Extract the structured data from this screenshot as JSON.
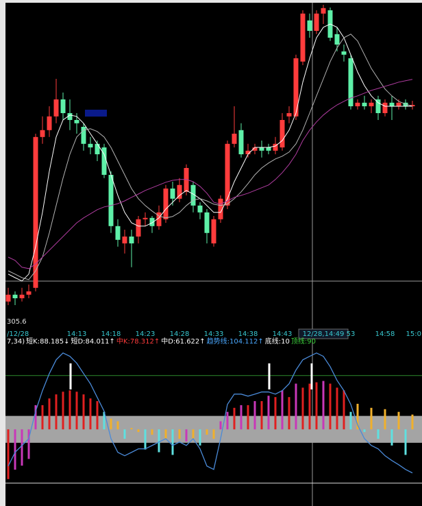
{
  "chart_data": [
    {
      "type": "candlestick",
      "categories": [
        "/12/28",
        null,
        null,
        null,
        null,
        null,
        null,
        null,
        null,
        null,
        "14:13",
        null,
        null,
        null,
        null,
        "14:18",
        null,
        null,
        null,
        null,
        "14:23",
        null,
        null,
        null,
        null,
        "14:28",
        null,
        null,
        null,
        null,
        "14:33",
        null,
        null,
        null,
        null,
        "14:38",
        null,
        null,
        null,
        null,
        "14:43",
        null,
        null,
        null,
        null,
        null,
        "12/28,14:49",
        null,
        null,
        null,
        "53",
        null,
        null,
        null,
        null,
        "14:58",
        null,
        null,
        null,
        "15:0"
      ],
      "open": [
        306.38,
        306.63,
        306.5,
        306.63,
        306.88,
        312.38,
        312.63,
        313.13,
        313.75,
        313.25,
        313.0,
        312.75,
        312.13,
        312.13,
        312.0,
        311.0,
        309.13,
        308.5,
        308.75,
        308.75,
        309.38,
        309.43,
        309.13,
        309.38,
        310.5,
        310.13,
        310.38,
        310.63,
        309.88,
        309.63,
        308.5,
        309.38,
        309.88,
        312.13,
        312.63,
        311.75,
        311.88,
        312.0,
        312.0,
        311.88,
        312.0,
        313.13,
        313.13,
        315.13,
        316.63,
        316.25,
        316.88,
        317.0,
        316.13,
        315.5,
        315.25,
        313.5,
        313.63,
        313.5,
        313.75,
        313.25,
        313.63,
        313.5,
        313.63,
        313.5
      ],
      "close": [
        306.63,
        306.5,
        306.63,
        306.75,
        312.38,
        312.63,
        313.13,
        313.75,
        313.25,
        313.0,
        312.88,
        312.13,
        312.0,
        311.75,
        311.0,
        309.13,
        308.63,
        308.75,
        308.5,
        309.38,
        309.43,
        309.13,
        309.63,
        310.5,
        310.13,
        310.63,
        311.25,
        309.88,
        309.63,
        308.88,
        309.38,
        310.13,
        312.13,
        312.5,
        311.75,
        311.88,
        312.0,
        311.88,
        311.88,
        312.13,
        313.0,
        313.25,
        315.25,
        316.88,
        316.25,
        316.88,
        317.08,
        316.0,
        315.75,
        315.38,
        313.5,
        313.63,
        313.5,
        313.63,
        313.25,
        313.63,
        313.5,
        313.63,
        313.5,
        313.55
      ],
      "high": [
        306.88,
        306.75,
        306.88,
        307.0,
        312.5,
        313.13,
        313.5,
        314.5,
        314.0,
        313.75,
        313.25,
        312.88,
        312.38,
        312.25,
        312.13,
        311.13,
        309.38,
        309.0,
        309.0,
        309.5,
        309.63,
        309.5,
        309.88,
        310.63,
        310.75,
        310.88,
        311.38,
        310.75,
        310.0,
        309.75,
        309.5,
        310.25,
        312.25,
        313.5,
        312.88,
        312.13,
        312.13,
        312.25,
        312.13,
        312.38,
        313.25,
        313.5,
        315.38,
        317.0,
        316.88,
        317.0,
        317.2,
        317.1,
        316.38,
        315.75,
        315.38,
        313.75,
        313.88,
        313.75,
        313.88,
        313.75,
        313.88,
        313.75,
        313.75,
        313.7
      ],
      "low": [
        306.25,
        306.25,
        306.38,
        306.5,
        306.75,
        312.13,
        312.38,
        312.88,
        313.0,
        312.63,
        312.5,
        311.88,
        311.75,
        311.5,
        310.88,
        308.88,
        308.38,
        308.13,
        307.63,
        308.5,
        309.13,
        308.88,
        309.0,
        309.25,
        309.88,
        310.0,
        310.25,
        309.63,
        309.38,
        308.5,
        308.38,
        309.25,
        309.75,
        312.0,
        311.63,
        311.63,
        311.75,
        311.63,
        311.75,
        311.75,
        311.88,
        312.88,
        313.0,
        315.0,
        316.0,
        316.13,
        316.5,
        315.88,
        315.5,
        315.13,
        313.38,
        313.38,
        313.38,
        313.25,
        313.0,
        313.13,
        313.0,
        313.38,
        313.38,
        313.38
      ],
      "up_color": "#ff3c3c",
      "down_color": "#5ef0a8",
      "lines": [
        {
          "color": "#ffffff",
          "values": [
            307.38,
            307.25,
            307.13,
            307.38,
            308.38,
            309.63,
            311.13,
            312.38,
            313.0,
            313.18,
            313.13,
            312.88,
            312.5,
            312.13,
            311.75,
            311.0,
            310.25,
            309.63,
            309.25,
            309.13,
            309.13,
            309.25,
            309.43,
            309.75,
            310.0,
            310.25,
            310.43,
            310.3,
            310.13,
            309.88,
            309.63,
            309.63,
            310.13,
            310.75,
            311.25,
            311.75,
            312.0,
            312.0,
            312.0,
            312.05,
            312.25,
            312.63,
            313.25,
            314.38,
            315.25,
            316.0,
            316.38,
            316.5,
            316.38,
            316.0,
            315.38,
            314.75,
            314.25,
            313.88,
            313.63,
            313.5,
            313.5,
            313.5,
            313.5,
            313.5
          ]
        },
        {
          "color": "#b4b4b4",
          "values": [
            307.5,
            307.38,
            307.25,
            307.18,
            307.5,
            308.0,
            308.88,
            309.88,
            310.88,
            311.75,
            312.38,
            312.63,
            312.68,
            312.58,
            312.38,
            312.0,
            311.5,
            311.0,
            310.5,
            310.13,
            309.88,
            309.68,
            309.5,
            309.43,
            309.48,
            309.63,
            309.88,
            310.08,
            310.13,
            310.05,
            309.93,
            309.88,
            309.93,
            310.13,
            310.38,
            310.68,
            311.0,
            311.25,
            311.43,
            311.58,
            311.68,
            311.83,
            312.13,
            312.63,
            313.25,
            313.88,
            314.5,
            315.13,
            315.63,
            316.0,
            316.13,
            315.88,
            315.38,
            314.88,
            314.5,
            314.13,
            313.88,
            313.68,
            313.58,
            313.5
          ]
        },
        {
          "color": "#b03ca0",
          "values": [
            308.0,
            307.88,
            307.63,
            307.58,
            307.75,
            308.0,
            308.25,
            308.5,
            308.75,
            309.0,
            309.25,
            309.43,
            309.58,
            309.73,
            309.83,
            309.88,
            309.95,
            310.05,
            310.18,
            310.3,
            310.43,
            310.53,
            310.63,
            310.73,
            310.8,
            310.83,
            310.83,
            310.75,
            310.58,
            310.33,
            310.0,
            309.93,
            310.05,
            310.18,
            310.25,
            310.33,
            310.43,
            310.53,
            310.63,
            310.83,
            311.08,
            311.38,
            311.75,
            312.25,
            312.63,
            312.93,
            313.18,
            313.38,
            313.55,
            313.68,
            313.8,
            313.88,
            313.98,
            314.08,
            314.15,
            314.23,
            314.3,
            314.38,
            314.43,
            314.48
          ]
        }
      ],
      "ylim": [
        305.6,
        317.25
      ],
      "yticks": [
        305.6
      ]
    },
    {
      "type": "indicator",
      "header": [
        {
          "text": "7,34)",
          "color": "#ffffff"
        },
        {
          "text": "短K:88.185↓",
          "color": "#ffffff"
        },
        {
          "text": "短D:84.011↑",
          "color": "#ffffff"
        },
        {
          "text": "中K:78.312↑",
          "color": "#ff3c3c"
        },
        {
          "text": "中D:61.622↑",
          "color": "#ffffff"
        },
        {
          "text": "趋势线:104.112↑",
          "color": "#4aa8ff"
        },
        {
          "text": "底线:10",
          "color": "#ffffff"
        },
        {
          "text": "顶线:90",
          "color": "#3cd23c"
        }
      ],
      "bars": {
        "values": [
          13,
          20,
          23,
          28,
          68,
          68,
          73,
          76,
          78,
          79,
          78,
          76,
          73,
          71,
          63,
          58,
          56,
          43,
          51,
          48,
          35,
          46,
          33,
          43,
          31,
          43,
          41,
          43,
          38,
          46,
          43,
          56,
          63,
          66,
          68,
          68,
          71,
          71,
          75,
          74,
          79,
          74,
          84,
          81,
          84,
          85,
          86,
          84,
          81,
          79,
          63,
          69,
          48,
          66,
          43,
          65,
          38,
          63,
          31,
          61
        ],
        "colors": [
          "#e02020",
          "#c838b8",
          "#c838b8",
          "#c838b8",
          "#c838b8",
          "#e02020",
          "#e02020",
          "#e02020",
          "#e02020",
          "#e02020",
          "#e02020",
          "#e02020",
          "#e02020",
          "#e02020",
          "#5ee0e0",
          "#f0b02c",
          "#f0b02c",
          "#5ee0e0",
          "#f0b02c",
          "#f0b02c",
          "#5ee0e0",
          "#f0b02c",
          "#5ee0e0",
          "#f0b02c",
          "#5ee0e0",
          "#f0b02c",
          "#c838b8",
          "#f0b02c",
          "#5ee0e0",
          "#f0b02c",
          "#f0b02c",
          "#c838b8",
          "#c838b8",
          "#e02020",
          "#c838b8",
          "#e02020",
          "#c838b8",
          "#e02020",
          "#c838b8",
          "#e02020",
          "#c838b8",
          "#e02020",
          "#c838b8",
          "#e02020",
          "#e02020",
          "#e02020",
          "#c838b8",
          "#e02020",
          "#e02020",
          "#e02020",
          "#5ee0e0",
          "#f0b02c",
          "#5ee0e0",
          "#f0b02c",
          "#5ee0e0",
          "#f0b02c",
          "#5ee0e0",
          "#f0b02c",
          "#5ee0e0",
          "#f0b02c"
        ]
      },
      "lines": [
        {
          "color": "#4a8ad8",
          "values": [
            22.7,
            32.9,
            38.0,
            43.1,
            63.5,
            78.8,
            91.5,
            101.7,
            106.8,
            104.3,
            99.2,
            91.5,
            83.9,
            73.7,
            63.5,
            43.1,
            32.9,
            30.4,
            32.9,
            35.5,
            35.5,
            38.0,
            40.6,
            43.1,
            38.0,
            40.6,
            38.0,
            43.1,
            35.5,
            22.7,
            20.2,
            43.1,
            68.6,
            76.2,
            76.2,
            74.7,
            76.2,
            77.8,
            77.8,
            76.2,
            78.8,
            83.9,
            94.1,
            101.7,
            104.3,
            106.8,
            104.3,
            96.6,
            86.4,
            78.8,
            68.6,
            53.3,
            43.1,
            38.0,
            35.5,
            30.4,
            26.8,
            23.7,
            20.2,
            17.6
          ]
        }
      ],
      "band": [
        40,
        60
      ],
      "band_color": "#a4a4a4",
      "hlines": [
        {
          "value": 90,
          "color": "#2e8a2e"
        },
        {
          "value": 10,
          "color": "#d8d8d8"
        }
      ],
      "ylim": [
        -7,
        122
      ]
    }
  ]
}
